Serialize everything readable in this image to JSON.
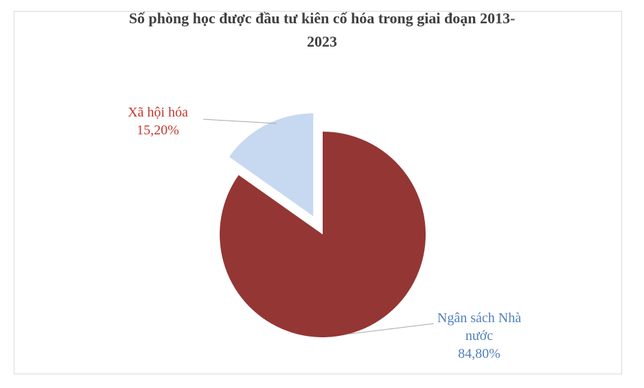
{
  "chart_data": {
    "type": "pie",
    "title_lines": [
      "Số phòng học được đầu tư kiên cố hóa trong giai đoạn 2013-",
      "2023"
    ],
    "slices": [
      {
        "name": "Ngân sách Nhà nước",
        "label_lines": [
          "Ngân sách Nhà",
          "nước"
        ],
        "value": 84.8,
        "value_label": "84,80%",
        "color": "#943634",
        "label_color": "#4f81bd"
      },
      {
        "name": "Xã hội hóa",
        "label_lines": [
          "Xã hội hóa"
        ],
        "value": 15.2,
        "value_label": "15,20%",
        "color": "#c6d9f1",
        "label_color": "#c0392b"
      }
    ]
  },
  "colors": {
    "leader_line": "#a6a6a6",
    "title": "#404040"
  }
}
